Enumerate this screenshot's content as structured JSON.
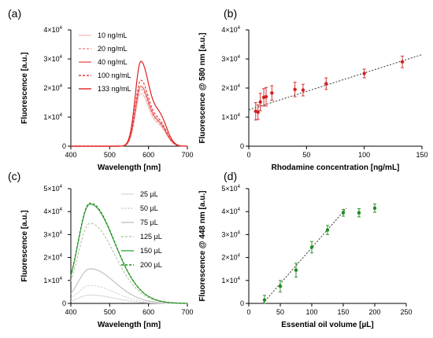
{
  "chart_data": [
    {
      "panel": "(a)",
      "type": "line",
      "xlabel": "Wavelength [nm]",
      "ylabel": "Fluorescence [a.u.]",
      "xlim": [
        400,
        700
      ],
      "ylim": [
        0,
        40000
      ],
      "xticks": [
        "400",
        "500",
        "600",
        "700"
      ],
      "yticks": [
        {
          "m": "0",
          "e": ""
        },
        {
          "m": "1×10",
          "e": "4"
        },
        {
          "m": "2×10",
          "e": "4"
        },
        {
          "m": "3×10",
          "e": "4"
        },
        {
          "m": "4×10",
          "e": "4"
        }
      ],
      "legend_position": "top-left",
      "series": [
        {
          "name": "10 ng/mL",
          "color": "#f7c1c1",
          "dash": "none",
          "peak": 18000
        },
        {
          "name": "20 ng/mL",
          "color": "#ee8f8f",
          "dash": "3,2",
          "peak": 19500
        },
        {
          "name": "40 ng/mL",
          "color": "#e85b5b",
          "dash": "none",
          "peak": 20500
        },
        {
          "name": "100 ng/mL",
          "color": "#e23a3a",
          "dash": "3,2",
          "peak": 22500
        },
        {
          "name": "133 ng/mL",
          "color": "#de2020",
          "dash": "none",
          "peak": 29000
        }
      ]
    },
    {
      "panel": "(b)",
      "type": "scatter",
      "xlabel": "Rhodamine concentration [ng/mL]",
      "ylabel": "Fluorescence @ 580 nm [a.u.]",
      "xlim": [
        0,
        150
      ],
      "ylim": [
        0,
        40000
      ],
      "xticks": [
        "0",
        "50",
        "100",
        "150"
      ],
      "yticks": [
        {
          "m": "0",
          "e": ""
        },
        {
          "m": "1×10",
          "e": "4"
        },
        {
          "m": "2×10",
          "e": "4"
        },
        {
          "m": "3×10",
          "e": "4"
        },
        {
          "m": "4×10",
          "e": "4"
        }
      ],
      "color": "#d42020",
      "x": [
        6,
        8,
        10,
        13,
        15,
        20,
        40,
        47,
        67,
        100,
        133
      ],
      "y": [
        12000,
        11700,
        15200,
        16800,
        17000,
        18300,
        19500,
        19300,
        21500,
        25000,
        29000
      ],
      "err": [
        3000,
        2500,
        3000,
        3000,
        3200,
        2500,
        2500,
        2000,
        2000,
        1500,
        2000
      ],
      "fit": {
        "x": [
          0,
          150
        ],
        "y": [
          12500,
          31500
        ]
      }
    },
    {
      "panel": "(c)",
      "type": "line",
      "xlabel": "Wavelength [nm]",
      "ylabel": "Fluorescence [a.u.]",
      "xlim": [
        400,
        700
      ],
      "ylim": [
        0,
        50000
      ],
      "xticks": [
        "400",
        "500",
        "600",
        "700"
      ],
      "yticks": [
        {
          "m": "0",
          "e": ""
        },
        {
          "m": "1×10",
          "e": "4"
        },
        {
          "m": "2×10",
          "e": "4"
        },
        {
          "m": "3×10",
          "e": "4"
        },
        {
          "m": "4×10",
          "e": "4"
        },
        {
          "m": "5×10",
          "e": "4"
        }
      ],
      "legend_position": "top-right",
      "series": [
        {
          "name": "25 µL",
          "color": "#dcdcdc",
          "dash": "none",
          "peak": 3500
        },
        {
          "name": "50 µL",
          "color": "#cfcfcf",
          "dash": "2,2",
          "peak": 7500
        },
        {
          "name": "75 µL",
          "color": "#c2c2c2",
          "dash": "none",
          "peak": 14500
        },
        {
          "name": "125 µL",
          "color": "#b8c8a8",
          "dash": "3,2",
          "peak": 33500
        },
        {
          "name": "150 µL",
          "color": "#45a845",
          "dash": "none",
          "peak": 41500
        },
        {
          "name": "200 µL",
          "color": "#1d8a1d",
          "dash": "3,2",
          "peak": 42000
        }
      ]
    },
    {
      "panel": "(d)",
      "type": "scatter",
      "xlabel": "Essential oil volume [µL]",
      "ylabel": "Fluorescence @ 448 nm [a.u.]",
      "xlim": [
        0,
        250
      ],
      "ylim": [
        0,
        50000
      ],
      "xticks": [
        "0",
        "50",
        "100",
        "150",
        "200",
        "250"
      ],
      "yticks": [
        {
          "m": "0",
          "e": ""
        },
        {
          "m": "1×10",
          "e": "4"
        },
        {
          "m": "2×10",
          "e": "4"
        },
        {
          "m": "3×10",
          "e": "4"
        },
        {
          "m": "4×10",
          "e": "4"
        },
        {
          "m": "5×10",
          "e": "4"
        }
      ],
      "color": "#1e8a1e",
      "x": [
        25,
        50,
        75,
        100,
        125,
        150,
        175,
        200
      ],
      "y": [
        1500,
        7500,
        14500,
        24500,
        32000,
        39500,
        39500,
        41500
      ],
      "err": [
        2000,
        2500,
        3000,
        2500,
        2000,
        1500,
        1800,
        1800
      ],
      "fit": {
        "x": [
          20,
          155
        ],
        "y": [
          -2000,
          41500
        ]
      }
    }
  ]
}
